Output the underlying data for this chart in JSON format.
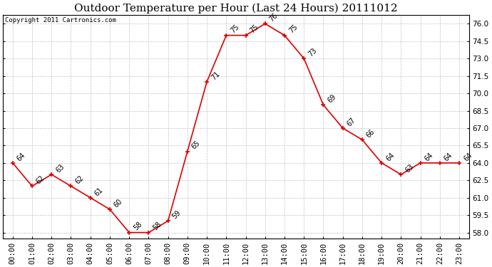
{
  "title": "Outdoor Temperature per Hour (Last 24 Hours) 20111012",
  "copyright_text": "Copyright 2011 Cartronics.com",
  "hours": [
    0,
    1,
    2,
    3,
    4,
    5,
    6,
    7,
    8,
    9,
    10,
    11,
    12,
    13,
    14,
    15,
    16,
    17,
    18,
    19,
    20,
    21,
    22,
    23
  ],
  "temps": [
    64,
    62,
    63,
    62,
    61,
    60,
    58,
    58,
    59,
    65,
    71,
    75,
    75,
    76,
    75,
    73,
    69,
    67,
    66,
    64,
    63,
    64,
    64,
    64
  ],
  "x_labels": [
    "00:00",
    "01:00",
    "02:00",
    "03:00",
    "04:00",
    "05:00",
    "06:00",
    "07:00",
    "08:00",
    "09:00",
    "10:00",
    "11:00",
    "12:00",
    "13:00",
    "14:00",
    "15:00",
    "16:00",
    "17:00",
    "18:00",
    "19:00",
    "20:00",
    "21:00",
    "22:00",
    "23:00"
  ],
  "ylim_min": 57.5,
  "ylim_max": 76.75,
  "y_ticks": [
    58.0,
    59.5,
    61.0,
    62.5,
    64.0,
    65.5,
    67.0,
    68.5,
    70.0,
    71.5,
    73.0,
    74.5,
    76.0
  ],
  "line_color": "#dd0000",
  "marker_color": "#dd0000",
  "bg_color": "#ffffff",
  "grid_color": "#bbbbcc",
  "title_fontsize": 11,
  "annotation_fontsize": 7,
  "tick_fontsize": 7.5,
  "copyright_fontsize": 6.5
}
